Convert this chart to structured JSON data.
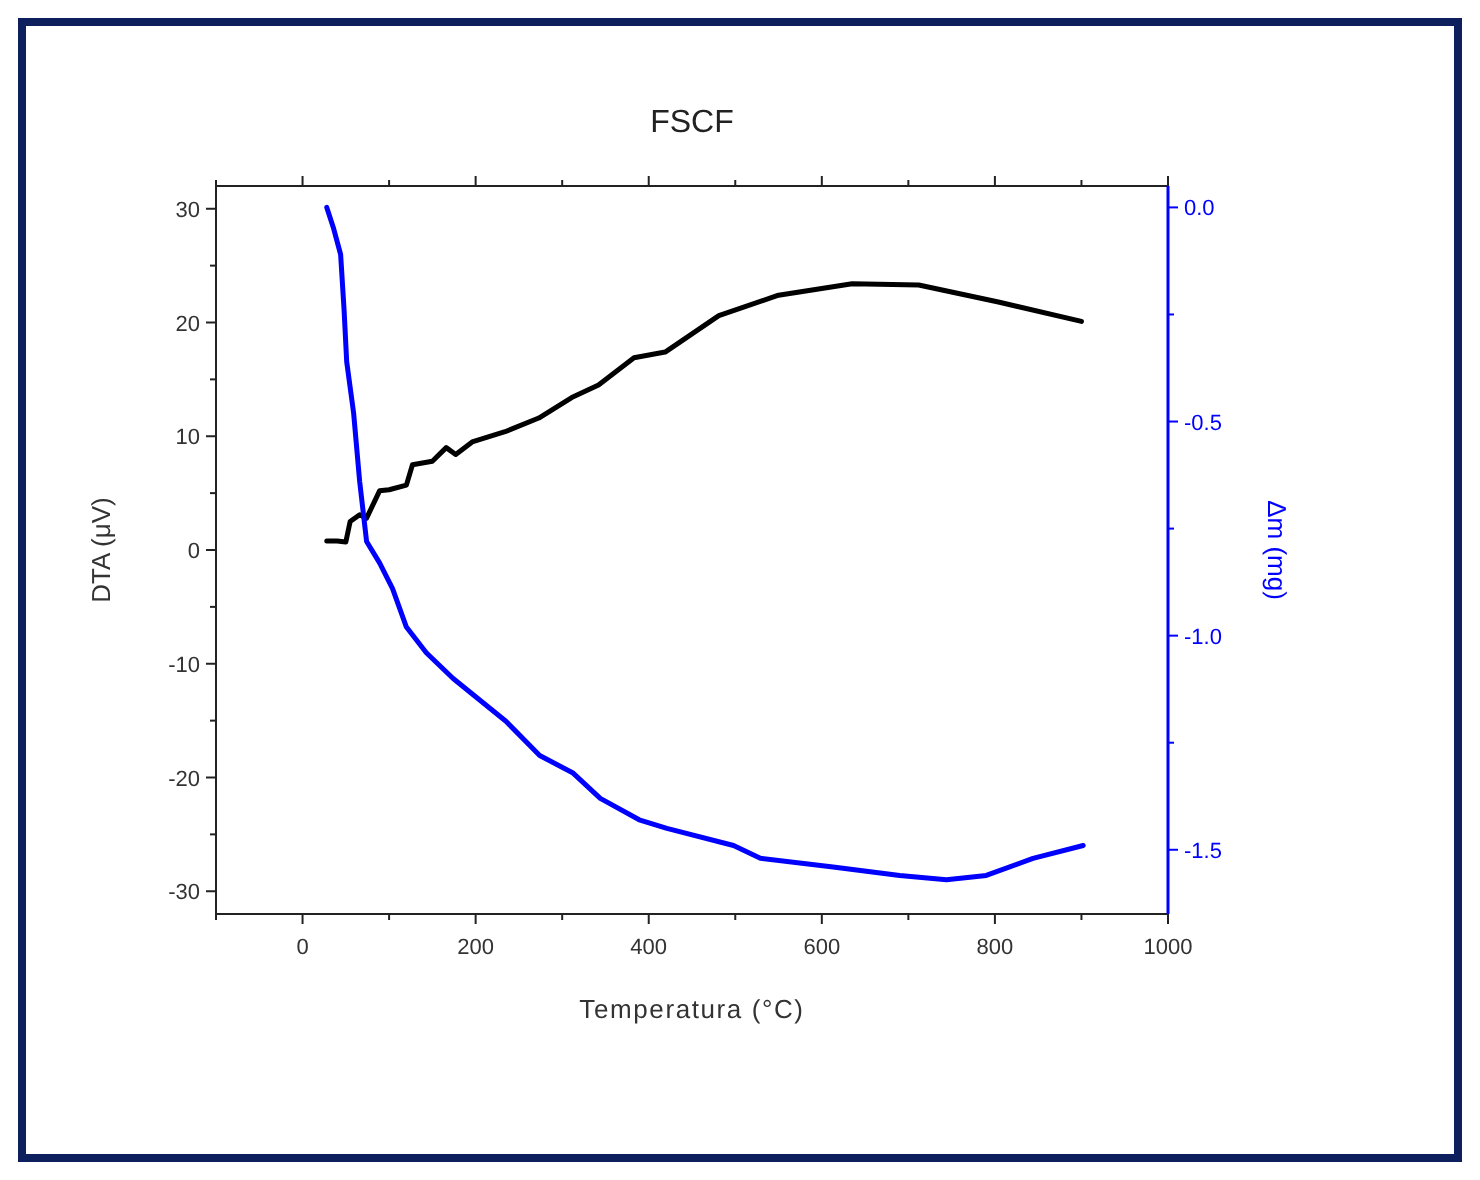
{
  "chart_data": {
    "type": "line",
    "title": "FSCF",
    "xlabel": "Temperatura (°C)",
    "ylabel": "DTA (μV)",
    "y2label": "Δm (mg)",
    "xlim": [
      -100,
      1000
    ],
    "xticks": [
      {
        "value": -100,
        "label": null
      },
      0,
      {
        "value": 100,
        "label": null
      },
      200,
      {
        "value": 300,
        "label": null
      },
      400,
      {
        "value": 500,
        "label": null
      },
      600,
      {
        "value": 700,
        "label": null
      },
      800,
      {
        "value": 900,
        "label": null
      },
      1000
    ],
    "ylim": [
      -32,
      32
    ],
    "yticks": [
      -30,
      {
        "value": -25,
        "label": null
      },
      -20,
      {
        "value": -15,
        "label": null
      },
      -10,
      {
        "value": -5,
        "label": null
      },
      0,
      {
        "value": 5,
        "label": null
      },
      10,
      {
        "value": 15,
        "label": null
      },
      20,
      {
        "value": 25,
        "label": null
      },
      30
    ],
    "y2lim": [
      -1.65,
      0.05
    ],
    "y2ticks": [
      {
        "value": -1.5,
        "label": "-1.5"
      },
      {
        "value": -1.25,
        "label": null
      },
      {
        "value": -1,
        "label": "-1.0"
      },
      {
        "value": -0.75,
        "label": null
      },
      {
        "value": -0.5,
        "label": "-0.5"
      },
      {
        "value": -0.25,
        "label": null
      },
      {
        "value": 0,
        "label": "0.0"
      }
    ],
    "marker": "none",
    "line_style": "solid",
    "series": [
      {
        "color": "#000000",
        "x": [
          28,
          40,
          50,
          55,
          66,
          74,
          89,
          100,
          120,
          127,
          150,
          166,
          177,
          196,
          234,
          273,
          311,
          342,
          383,
          419,
          481,
          550,
          635,
          712,
          804,
          900
        ],
        "values": [
          0.8,
          0.8,
          0.7,
          2.5,
          3.1,
          2.8,
          5.2,
          5.3,
          5.7,
          7.5,
          7.8,
          9,
          8.4,
          9.5,
          10.4,
          11.6,
          13.4,
          14.5,
          16.9,
          17.4,
          20.6,
          22.4,
          23.4,
          23.3,
          21.8,
          20.1
        ]
      },
      {
        "color": "#0000ff",
        "axis": "y2",
        "x": [
          28,
          36,
          44,
          48,
          51,
          59,
          66,
          74,
          89,
          104,
          120,
          143,
          174,
          235,
          274,
          312,
          344,
          389,
          421,
          498,
          529,
          613,
          690,
          744,
          790,
          844,
          902
        ],
        "values": [
          0,
          -0.05,
          -0.11,
          -0.24,
          -0.36,
          -0.48,
          -0.64,
          -0.78,
          -0.83,
          -0.89,
          -0.98,
          -1.04,
          -1.1,
          -1.2,
          -1.28,
          -1.32,
          -1.38,
          -1.43,
          -1.45,
          -1.49,
          -1.52,
          -1.54,
          -1.56,
          -1.57,
          -1.56,
          -1.52,
          -1.49
        ]
      }
    ]
  }
}
